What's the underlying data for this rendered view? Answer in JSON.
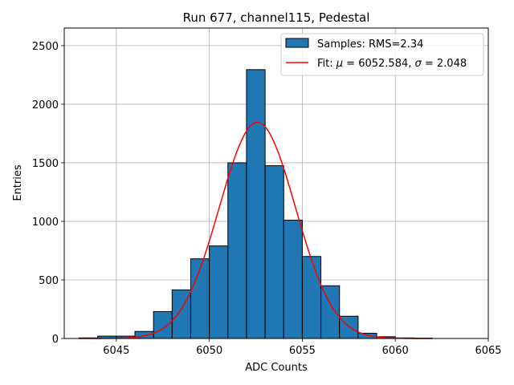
{
  "chart_data": {
    "type": "bar",
    "title": "Run 677, channel115, Pedestal",
    "xlabel": "ADC Counts",
    "ylabel": "Entries",
    "xlim": [
      6042.2,
      6065
    ],
    "ylim": [
      0,
      2650
    ],
    "xticks": [
      6045,
      6050,
      6055,
      6060,
      6065
    ],
    "yticks": [
      0,
      500,
      1000,
      1500,
      2000,
      2500
    ],
    "grid": true,
    "bar_color": "#1f77b4",
    "fit_color": "#ff0000",
    "bins": {
      "edges": [
        6043,
        6044,
        6045,
        6046,
        6047,
        6048,
        6049,
        6050,
        6051,
        6052,
        6053,
        6054,
        6055,
        6056,
        6057,
        6058,
        6059,
        6060,
        6061,
        6062
      ],
      "counts": [
        5,
        20,
        20,
        60,
        230,
        415,
        680,
        790,
        1500,
        2295,
        1475,
        1010,
        700,
        450,
        190,
        45,
        15,
        5,
        3
      ]
    },
    "fit": {
      "mu": 6052.584,
      "sigma": 2.048,
      "amplitude": 1845,
      "x_range": [
        6043,
        6062
      ]
    },
    "legend": {
      "position": "top-right",
      "samples_label": "Samples: RMS=2.34",
      "fit_prefix": "Fit: ",
      "mu_symbol": "μ",
      "mu_text": " = 6052.584, ",
      "sigma_symbol": "σ",
      "sigma_text": " = 2.048"
    }
  }
}
